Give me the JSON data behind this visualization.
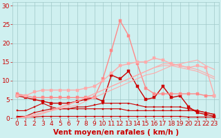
{
  "x": [
    0,
    1,
    2,
    3,
    4,
    5,
    6,
    7,
    8,
    9,
    10,
    11,
    12,
    13,
    14,
    15,
    16,
    17,
    18,
    19,
    20,
    21,
    22,
    23
  ],
  "lines": [
    {
      "y": [
        0.3,
        0.3,
        0.3,
        0.5,
        0.5,
        0.5,
        0.5,
        0.5,
        0.5,
        0.5,
        0.5,
        0.5,
        0.5,
        0.5,
        0.5,
        0.5,
        0.5,
        0.5,
        0.5,
        0.5,
        0.3,
        0.3,
        0.3,
        0.3
      ],
      "color": "#cc0000",
      "lw": 0.8,
      "marker": "s",
      "ms": 2.0
    },
    {
      "y": [
        0.5,
        0.5,
        1.5,
        2.0,
        2.5,
        2.5,
        2.5,
        2.5,
        2.5,
        2.5,
        2.5,
        2.5,
        2.5,
        2.0,
        2.0,
        2.0,
        2.0,
        2.0,
        2.0,
        2.0,
        2.0,
        2.0,
        1.5,
        1.0
      ],
      "color": "#cc0000",
      "lw": 0.8,
      "marker": "s",
      "ms": 2.0
    },
    {
      "y": [
        2.0,
        2.0,
        3.0,
        4.0,
        3.0,
        2.5,
        2.5,
        3.0,
        3.0,
        3.5,
        4.0,
        4.0,
        4.0,
        4.0,
        3.5,
        3.0,
        3.0,
        3.0,
        3.0,
        3.0,
        2.5,
        2.0,
        1.5,
        1.0
      ],
      "color": "#cc0000",
      "lw": 0.8,
      "marker": "s",
      "ms": 2.0
    },
    {
      "y": [
        6.0,
        5.5,
        5.0,
        4.5,
        4.0,
        4.0,
        4.0,
        4.5,
        5.0,
        5.5,
        4.5,
        11.5,
        10.5,
        12.5,
        8.5,
        5.0,
        5.5,
        8.5,
        5.5,
        6.0,
        3.0,
        1.5,
        1.0,
        0.5
      ],
      "color": "#cc0000",
      "lw": 1.0,
      "marker": "s",
      "ms": 2.5
    },
    {
      "y": [
        6.5,
        6.0,
        5.5,
        5.5,
        5.5,
        5.5,
        5.5,
        5.5,
        5.5,
        5.5,
        10.5,
        18.0,
        26.0,
        22.0,
        14.5,
        8.0,
        6.5,
        6.5,
        6.5,
        6.5,
        6.5,
        6.5,
        6.0,
        6.0
      ],
      "color": "#ff8888",
      "lw": 1.0,
      "marker": "s",
      "ms": 2.5
    },
    {
      "y": [
        0,
        0.5,
        1.0,
        1.5,
        2.0,
        2.5,
        3.0,
        3.5,
        4.5,
        5.5,
        6.5,
        7.5,
        8.5,
        9.5,
        10.5,
        11.5,
        12.0,
        13.0,
        14.0,
        14.5,
        15.0,
        15.5,
        14.0,
        13.0
      ],
      "color": "#ffaaaa",
      "lw": 0.8,
      "marker": null,
      "ms": 0
    },
    {
      "y": [
        0,
        0.3,
        0.8,
        1.5,
        2.2,
        3.0,
        3.8,
        4.5,
        5.5,
        6.5,
        7.5,
        8.5,
        9.5,
        10.5,
        11.5,
        12.5,
        13.5,
        14.5,
        14.5,
        14.0,
        13.5,
        13.0,
        12.0,
        11.0
      ],
      "color": "#ffaaaa",
      "lw": 0.8,
      "marker": null,
      "ms": 0
    },
    {
      "y": [
        0,
        0.2,
        0.5,
        1.2,
        2.0,
        2.8,
        3.5,
        4.5,
        5.5,
        6.5,
        7.5,
        8.5,
        9.5,
        10.5,
        11.5,
        12.5,
        13.5,
        14.0,
        14.0,
        13.5,
        13.0,
        12.5,
        11.5,
        10.5
      ],
      "color": "#ffaaaa",
      "lw": 0.8,
      "marker": null,
      "ms": 0
    },
    {
      "y": [
        6.0,
        6.0,
        7.0,
        7.5,
        7.5,
        7.5,
        7.5,
        7.5,
        8.0,
        8.5,
        10.0,
        12.0,
        14.0,
        14.5,
        15.0,
        15.0,
        16.0,
        15.5,
        14.5,
        14.0,
        13.5,
        14.0,
        13.5,
        6.0
      ],
      "color": "#ffaaaa",
      "lw": 1.0,
      "marker": "s",
      "ms": 2.5
    }
  ],
  "xlabel": "Vent moyen/en rafales ( km/h )",
  "xlim": [
    -0.5,
    23.5
  ],
  "ylim": [
    0,
    31
  ],
  "yticks": [
    0,
    5,
    10,
    15,
    20,
    25,
    30
  ],
  "xticks": [
    0,
    1,
    2,
    3,
    4,
    5,
    6,
    7,
    8,
    9,
    10,
    11,
    12,
    13,
    14,
    15,
    16,
    17,
    18,
    19,
    20,
    21,
    22,
    23
  ],
  "bg_color": "#cff0f0",
  "grid_color": "#a0c8c8",
  "tick_color": "#cc0000",
  "label_color": "#cc0000",
  "font_size": 6.5
}
